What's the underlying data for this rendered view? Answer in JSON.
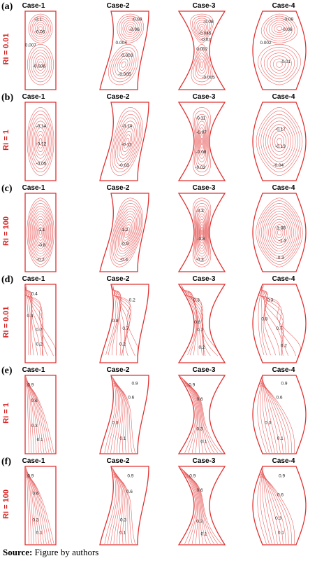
{
  "cases": [
    "Case-1",
    "Case-2",
    "Case-3",
    "Case-4"
  ],
  "rows": [
    {
      "panel": "(a)",
      "ri": "Ri = 0.01",
      "kind": "stream",
      "set": "a",
      "labels": [
        [
          "-0.1",
          "-0.06",
          "0.007",
          "-0.006"
        ],
        [
          "-0.09",
          "-0.06",
          "0.004",
          "0.003",
          "-0.005"
        ],
        [
          "-0.08",
          "-0.045",
          "-0.02",
          "0.002",
          "-0.005"
        ],
        [
          "-0.09",
          "-0.06",
          "0.002",
          "-0.01"
        ]
      ]
    },
    {
      "panel": "(b)",
      "ri": "Ri = 1",
      "kind": "stream",
      "set": "b",
      "labels": [
        [
          "-0.14",
          "-0.12",
          "-0.05"
        ],
        [
          "-0.14",
          "-0.12",
          "-0.03"
        ],
        [
          "-0.11",
          "-0.07",
          "-0.08",
          "-0.03"
        ],
        [
          "-0.17",
          "-0.13",
          "-0.04"
        ]
      ]
    },
    {
      "panel": "(c)",
      "ri": "Ri = 100",
      "kind": "stream",
      "set": "c",
      "labels": [
        [
          "-1.1",
          "-0.8",
          "-0.2"
        ],
        [
          "-1.2",
          "-0.9",
          "-0.4"
        ],
        [
          "-0.3",
          "-0.8",
          "-0.3"
        ],
        [
          "-1.38",
          "-1.3",
          "-0.3"
        ]
      ]
    },
    {
      "panel": "(d)",
      "ri": "Ri = 0.01",
      "kind": "iso",
      "set": "d",
      "labels": [
        [
          "0.4",
          "0.3",
          "0.7",
          "0.2"
        ],
        [
          "0.2",
          "0.8",
          "0.7",
          "0.2"
        ],
        [
          "0.3",
          "0.8",
          "0.7",
          "0.2"
        ],
        [
          "0.3",
          "0.8",
          "0.7",
          "0.2"
        ]
      ]
    },
    {
      "panel": "(e)",
      "ri": "Ri = 1",
      "kind": "iso",
      "set": "e",
      "labels": [
        [
          "0.9",
          "0.6",
          "0.3",
          "0.1"
        ],
        [
          "0.9",
          "0.6",
          "0.3",
          "0.1"
        ],
        [
          "0.9",
          "0.6",
          "0.3",
          "0.1"
        ],
        [
          "0.9",
          "0.6",
          "0.3",
          "0.1"
        ]
      ]
    },
    {
      "panel": "(f)",
      "ri": "Ri = 100",
      "kind": "iso",
      "set": "f",
      "labels": [
        [
          "0.9",
          "0.6",
          "0.3",
          "0.1"
        ],
        [
          "0.9",
          "0.6",
          "0.3",
          "0.1"
        ],
        [
          "0.9",
          "0.6",
          "0.3",
          "0.1"
        ],
        [
          "0.9",
          "0.6",
          "0.3",
          "0.1"
        ]
      ]
    }
  ],
  "source": {
    "label": "Source:",
    "text": "Figure by authors"
  },
  "colors": {
    "boundary": "#e03030",
    "contour": "#e85a5a",
    "ri_label": "#d62020"
  }
}
